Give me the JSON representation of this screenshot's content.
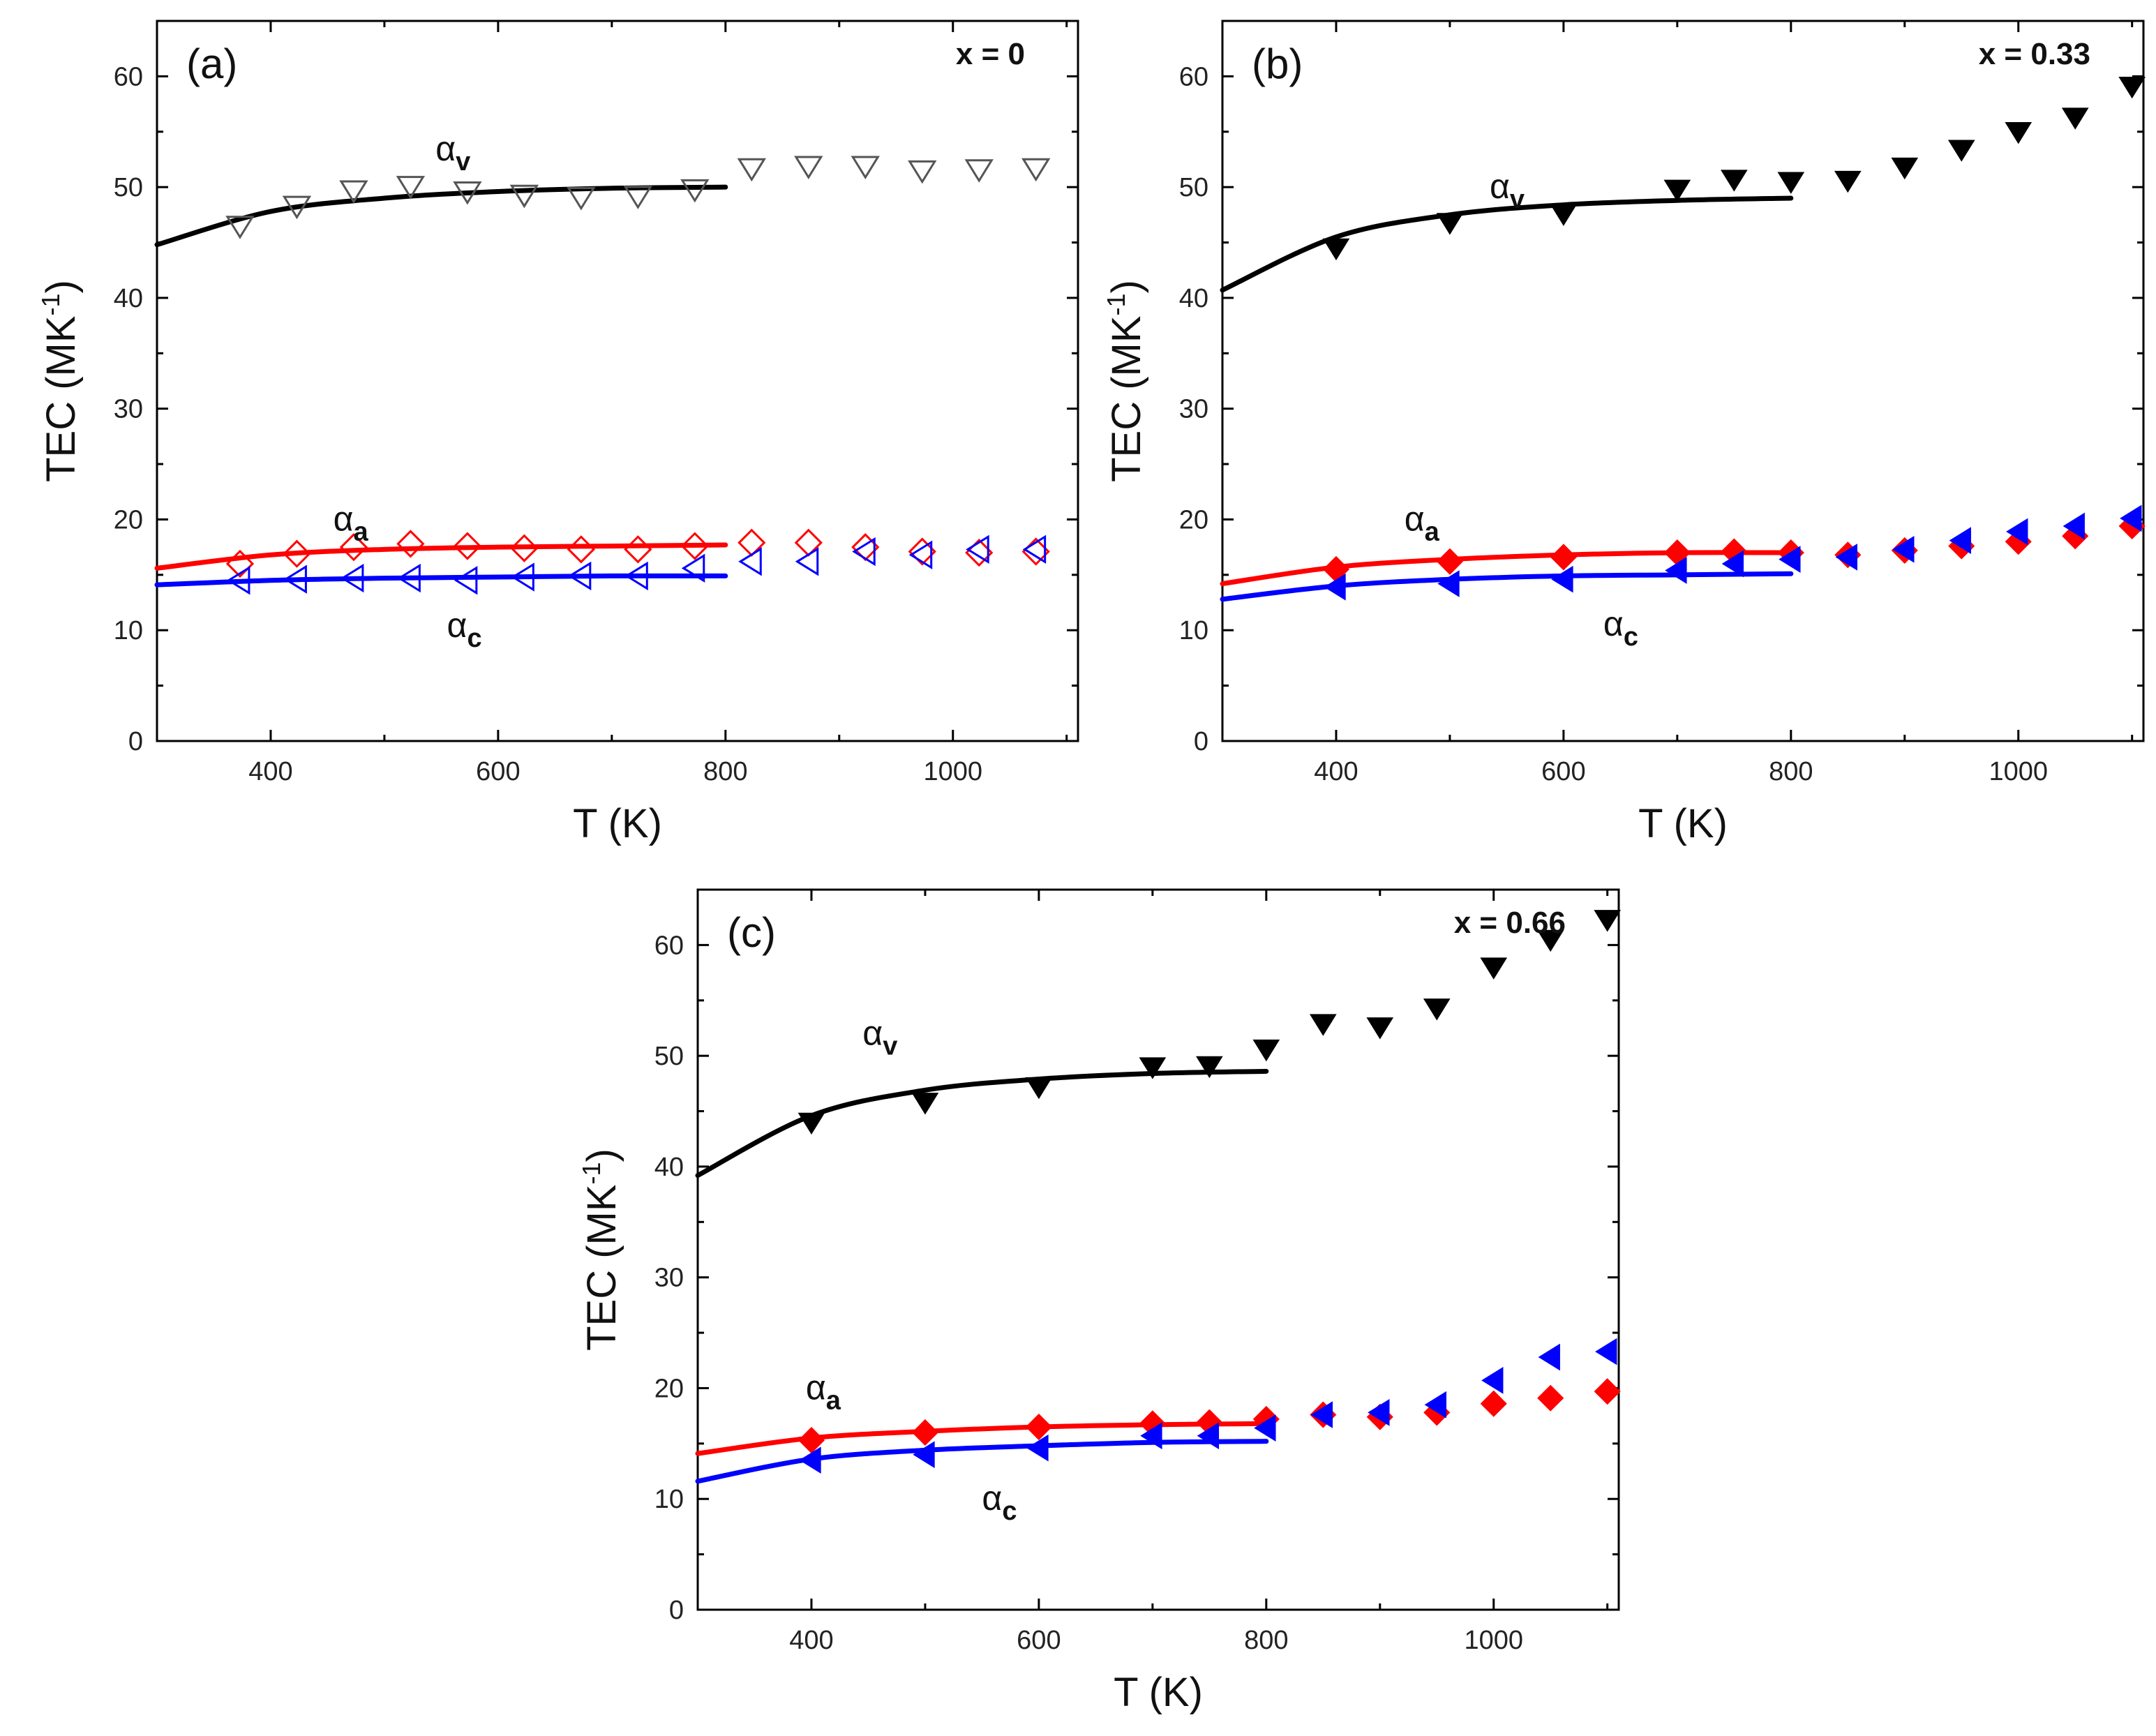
{
  "colors": {
    "v": "#000000",
    "a": "#ff0000",
    "c": "#0000ff",
    "v_open": "#555555"
  },
  "chart_data": [
    {
      "type": "scatter",
      "panel_label": "(a)",
      "annotation": "x = 0",
      "xlabel": "T (K)",
      "ylabel_main": "TEC (MK",
      "ylabel_sup": "-1",
      "ylabel_close": ")",
      "xlim": [
        300,
        1110
      ],
      "ylim": [
        0,
        65
      ],
      "xticks": [
        400,
        600,
        800,
        1000
      ],
      "yticks": [
        0,
        10,
        20,
        30,
        40,
        50,
        60
      ],
      "grid": false,
      "series": [
        {
          "key": "v",
          "name": "α",
          "sub": "v",
          "marker": "triangle-down",
          "filled": false,
          "x": [
            373,
            423,
            473,
            523,
            573,
            623,
            673,
            723,
            773,
            823,
            873,
            923,
            973,
            1023,
            1073
          ],
          "y": [
            46.5,
            48.3,
            49.7,
            50.1,
            49.6,
            49.3,
            49.1,
            49.2,
            49.8,
            51.7,
            51.9,
            51.9,
            51.5,
            51.6,
            51.7
          ]
        },
        {
          "key": "a",
          "name": "α",
          "sub": "a",
          "marker": "diamond",
          "filled": false,
          "x": [
            373,
            423,
            473,
            523,
            573,
            623,
            673,
            723,
            773,
            823,
            873,
            923,
            973,
            1023,
            1073
          ],
          "y": [
            16.0,
            16.9,
            17.5,
            17.8,
            17.6,
            17.4,
            17.3,
            17.3,
            17.6,
            17.9,
            17.9,
            17.5,
            17.1,
            17.0,
            17.1
          ]
        },
        {
          "key": "c",
          "name": "α",
          "sub": "c",
          "marker": "triangle-left",
          "filled": false,
          "x": [
            373,
            423,
            473,
            523,
            573,
            623,
            673,
            723,
            773,
            823,
            873,
            923,
            973,
            1023,
            1073
          ],
          "y": [
            14.5,
            14.6,
            14.7,
            14.7,
            14.5,
            14.8,
            14.9,
            14.9,
            15.6,
            16.2,
            16.2,
            17.1,
            16.8,
            17.3,
            17.3
          ]
        }
      ],
      "fits": [
        {
          "key": "v",
          "x": [
            300,
            400,
            500,
            600,
            700,
            800
          ],
          "y": [
            44.8,
            47.8,
            49.0,
            49.6,
            49.9,
            50.0
          ]
        },
        {
          "key": "a",
          "x": [
            300,
            400,
            500,
            600,
            700,
            800
          ],
          "y": [
            15.6,
            16.8,
            17.3,
            17.5,
            17.6,
            17.7
          ]
        },
        {
          "key": "c",
          "x": [
            300,
            400,
            500,
            600,
            700,
            800
          ],
          "y": [
            14.1,
            14.5,
            14.7,
            14.8,
            14.9,
            14.9
          ]
        }
      ],
      "series_labels": [
        {
          "key": "v",
          "x": 545,
          "y": 52.4
        },
        {
          "key": "a",
          "x": 455,
          "y": 19.0
        },
        {
          "key": "c",
          "x": 555,
          "y": 9.4
        }
      ]
    },
    {
      "type": "scatter",
      "panel_label": "(b)",
      "annotation": "x = 0.33",
      "xlabel": "T (K)",
      "ylabel_main": "TEC (MK",
      "ylabel_sup": "-1",
      "ylabel_close": ")",
      "xlim": [
        300,
        1110
      ],
      "ylim": [
        0,
        65
      ],
      "xticks": [
        400,
        600,
        800,
        1000
      ],
      "yticks": [
        0,
        10,
        20,
        30,
        40,
        50,
        60
      ],
      "grid": false,
      "series": [
        {
          "key": "v",
          "name": "α",
          "sub": "v",
          "marker": "triangle-down",
          "filled": true,
          "x": [
            400,
            500,
            600,
            700,
            750,
            800,
            850,
            900,
            950,
            1000,
            1050,
            1100
          ],
          "y": [
            44.5,
            46.8,
            47.6,
            49.8,
            50.7,
            50.5,
            50.6,
            51.8,
            53.4,
            55.0,
            56.3,
            59.1
          ]
        },
        {
          "key": "a",
          "name": "α",
          "sub": "a",
          "marker": "diamond",
          "filled": true,
          "x": [
            400,
            500,
            600,
            700,
            750,
            800,
            850,
            900,
            950,
            1000,
            1050,
            1100
          ],
          "y": [
            15.5,
            16.2,
            16.6,
            17.0,
            17.1,
            17.0,
            16.8,
            17.2,
            17.6,
            18.0,
            18.5,
            19.4
          ]
        },
        {
          "key": "c",
          "name": "α",
          "sub": "c",
          "marker": "triangle-left",
          "filled": true,
          "x": [
            400,
            500,
            600,
            700,
            750,
            800,
            850,
            900,
            950,
            1000,
            1050,
            1100
          ],
          "y": [
            13.9,
            14.2,
            14.6,
            15.4,
            16.0,
            16.4,
            16.6,
            17.3,
            18.1,
            18.9,
            19.4,
            20.1
          ]
        }
      ],
      "fits": [
        {
          "key": "v",
          "x": [
            300,
            400,
            500,
            600,
            700,
            800
          ],
          "y": [
            40.7,
            45.5,
            47.5,
            48.4,
            48.8,
            49.0
          ]
        },
        {
          "key": "a",
          "x": [
            300,
            400,
            500,
            600,
            700,
            800
          ],
          "y": [
            14.2,
            15.7,
            16.4,
            16.8,
            17.0,
            17.0
          ]
        },
        {
          "key": "c",
          "x": [
            300,
            400,
            500,
            600,
            700,
            800
          ],
          "y": [
            12.8,
            14.0,
            14.6,
            14.9,
            15.0,
            15.1
          ]
        }
      ],
      "series_labels": [
        {
          "key": "v",
          "x": 535,
          "y": 49.0
        },
        {
          "key": "a",
          "x": 460,
          "y": 19.0
        },
        {
          "key": "c",
          "x": 635,
          "y": 9.5
        }
      ]
    },
    {
      "type": "scatter",
      "panel_label": "(c)",
      "annotation": "x = 0.66",
      "xlabel": "T (K)",
      "ylabel_main": "TEC (MK",
      "ylabel_sup": "-1",
      "ylabel_close": ")",
      "xlim": [
        300,
        1110
      ],
      "ylim": [
        0,
        65
      ],
      "xticks": [
        400,
        600,
        800,
        1000
      ],
      "yticks": [
        0,
        10,
        20,
        30,
        40,
        50,
        60
      ],
      "grid": false,
      "series": [
        {
          "key": "v",
          "name": "α",
          "sub": "v",
          "marker": "triangle-down",
          "filled": true,
          "x": [
            400,
            500,
            600,
            700,
            750,
            800,
            850,
            900,
            950,
            1000,
            1050,
            1100
          ],
          "y": [
            44.0,
            45.8,
            47.2,
            49.0,
            49.1,
            50.6,
            52.9,
            52.6,
            54.3,
            58.0,
            60.5,
            62.3
          ]
        },
        {
          "key": "a",
          "name": "α",
          "sub": "a",
          "marker": "diamond",
          "filled": true,
          "x": [
            400,
            500,
            600,
            700,
            750,
            800,
            850,
            900,
            950,
            1000,
            1050,
            1100
          ],
          "y": [
            15.3,
            16.0,
            16.5,
            16.8,
            16.9,
            17.2,
            17.6,
            17.4,
            17.8,
            18.6,
            19.1,
            19.7
          ]
        },
        {
          "key": "c",
          "name": "α",
          "sub": "c",
          "marker": "triangle-left",
          "filled": true,
          "x": [
            400,
            500,
            600,
            700,
            750,
            800,
            850,
            900,
            950,
            1000,
            1050,
            1100
          ],
          "y": [
            13.5,
            14.0,
            14.6,
            15.7,
            15.7,
            16.4,
            17.6,
            17.8,
            18.5,
            20.7,
            22.8,
            23.3
          ]
        }
      ],
      "fits": [
        {
          "key": "v",
          "x": [
            300,
            400,
            500,
            600,
            700,
            800
          ],
          "y": [
            39.2,
            44.6,
            46.9,
            47.9,
            48.4,
            48.6
          ]
        },
        {
          "key": "a",
          "x": [
            300,
            400,
            500,
            600,
            700,
            800
          ],
          "y": [
            14.1,
            15.5,
            16.1,
            16.5,
            16.7,
            16.8
          ]
        },
        {
          "key": "c",
          "x": [
            300,
            400,
            500,
            600,
            700,
            800
          ],
          "y": [
            11.6,
            13.6,
            14.4,
            14.8,
            15.1,
            15.2
          ]
        }
      ],
      "series_labels": [
        {
          "key": "v",
          "x": 445,
          "y": 51.0
        },
        {
          "key": "a",
          "x": 395,
          "y": 19.0
        },
        {
          "key": "c",
          "x": 550,
          "y": 9.0
        }
      ]
    }
  ]
}
